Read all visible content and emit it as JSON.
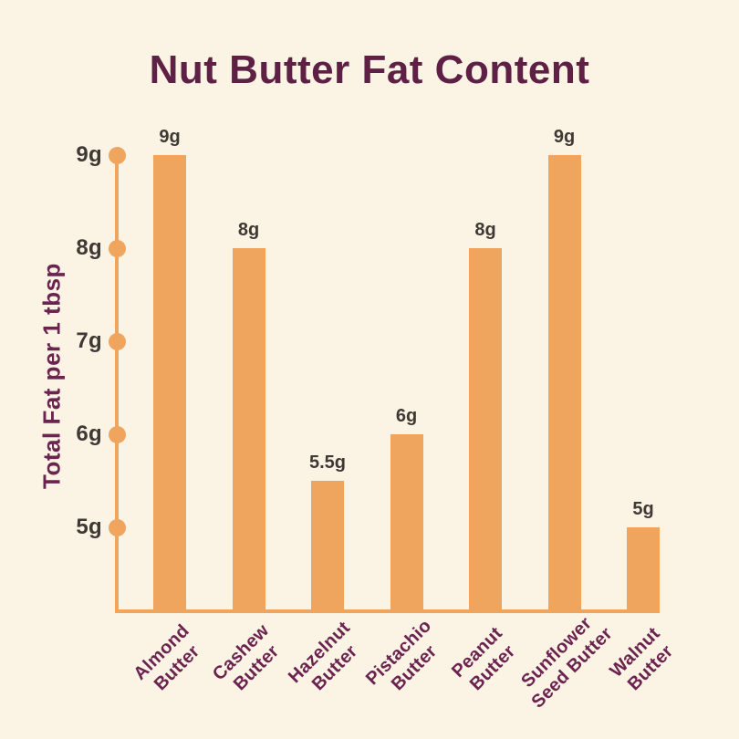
{
  "chart_data": {
    "type": "bar",
    "title": "Nut Butter Fat Content",
    "ylabel": "Total Fat per 1 tbsp",
    "xlabel": "",
    "categories": [
      "Almond Butter",
      "Cashew Butter",
      "Hazelnut Butter",
      "Pistachio Butter",
      "Peanut Butter",
      "Sunflower Seed Butter",
      "Walnut Butter"
    ],
    "category_lines": [
      [
        "Almond",
        "Butter"
      ],
      [
        "Cashew",
        "Butter"
      ],
      [
        "Hazelnut",
        "Butter"
      ],
      [
        "Pistachio",
        "Butter"
      ],
      [
        "Peanut",
        "Butter"
      ],
      [
        "Sunflower",
        "Seed Butter"
      ],
      [
        "Walnut",
        "Butter"
      ]
    ],
    "values": [
      9,
      8,
      5.5,
      6,
      8,
      9,
      5
    ],
    "value_labels": [
      "9g",
      "8g",
      "5.5g",
      "6g",
      "8g",
      "9g",
      "5g"
    ],
    "yticks": {
      "values": [
        5,
        6,
        7,
        8,
        9
      ],
      "labels": [
        "5g",
        "6g",
        "7g",
        "8g",
        "9g"
      ]
    },
    "ylim": [
      5,
      9
    ],
    "grid": false,
    "legend": null,
    "colors": {
      "background": "#fbf3e4",
      "bar": "#f0a55f",
      "axis": "#f0a55f",
      "title": "#5e2145",
      "axis_label": "#6b2350",
      "category_label": "#6b2350",
      "tick_label": "#3e3934",
      "value_label": "#3e3934"
    }
  }
}
